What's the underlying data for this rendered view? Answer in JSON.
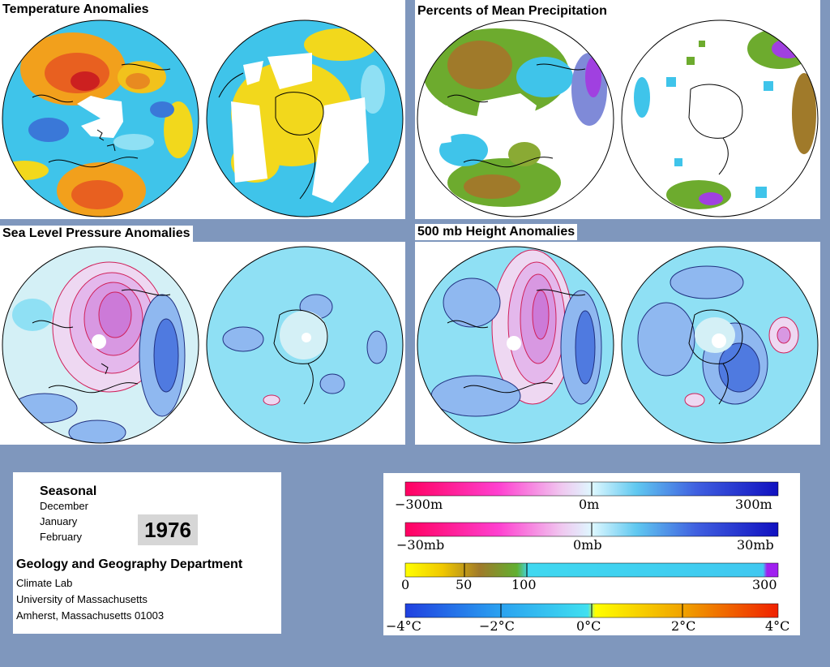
{
  "panels": {
    "temperature": {
      "title": "Temperature Anomalies"
    },
    "precipitation": {
      "title": "Percents of Mean Precipitation"
    },
    "slp": {
      "title": "Sea Level Pressure Anomalies"
    },
    "height500": {
      "title": "500 mb Height Anomalies"
    }
  },
  "info": {
    "season": "Seasonal",
    "months": [
      "December",
      "January",
      "February"
    ],
    "year": "1976",
    "department": "Geology and Geography Department",
    "lab": "Climate Lab",
    "university": "University of Massachusetts",
    "address": "Amherst, Massachusetts 01003"
  },
  "legends": {
    "height": {
      "labels": [
        "−300m",
        "0m",
        "300m"
      ]
    },
    "pressure": {
      "labels": [
        "−30mb",
        "0mb",
        "30mb"
      ]
    },
    "precip": {
      "labels": [
        "0",
        "50",
        "100",
        "300"
      ]
    },
    "temp": {
      "labels": [
        "−4°C",
        "−2°C",
        "0°C",
        "2°C",
        "4°C"
      ]
    }
  },
  "colors": {
    "background": "#7f97bd",
    "land_line": "#000000",
    "positive_contour": "#d0205a",
    "negative_contour": "#203080"
  }
}
